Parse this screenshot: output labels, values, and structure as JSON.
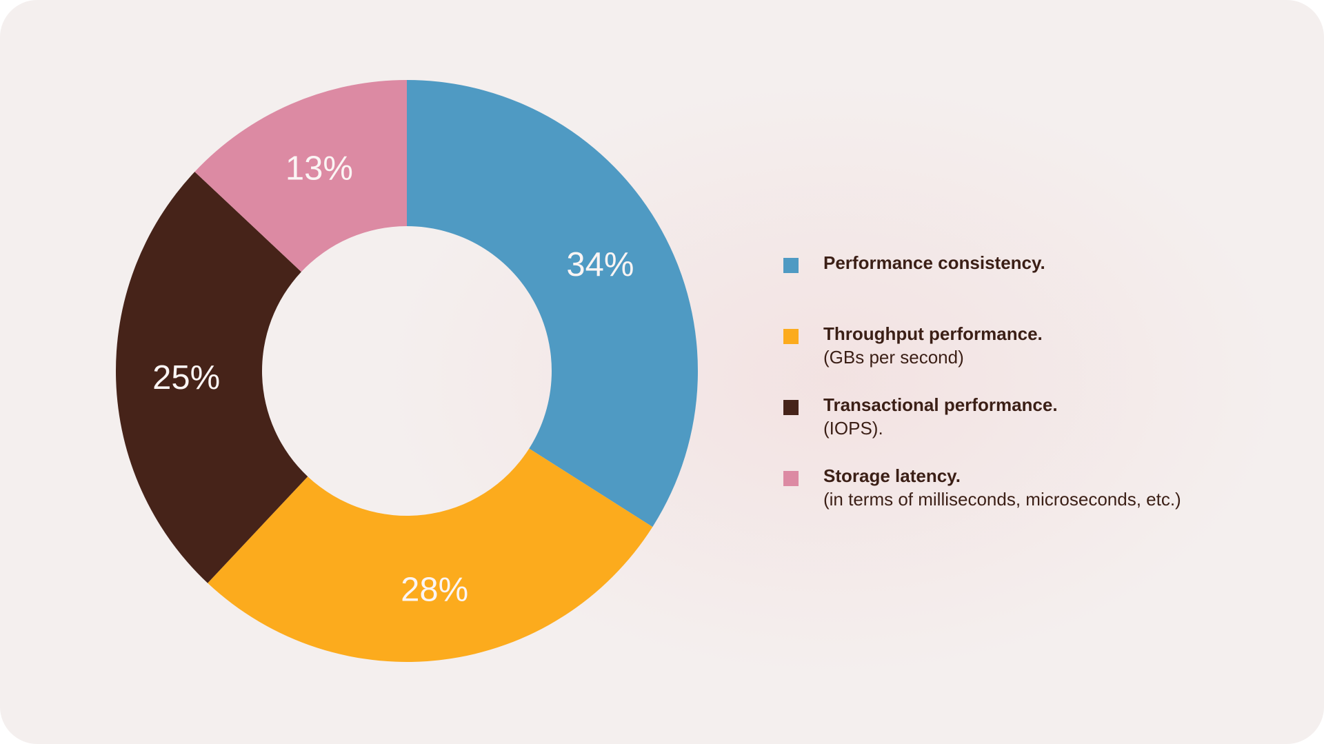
{
  "chart_data": {
    "type": "pie",
    "variant": "donut",
    "categories": [
      "Performance consistency.",
      "Throughput performance.",
      "Transactional performance.",
      "Storage latency."
    ],
    "values": [
      34,
      28,
      25,
      13
    ],
    "value_labels": [
      "34%",
      "28%",
      "25%",
      "13%"
    ],
    "colors": [
      "#4f9ac3",
      "#fcab1d",
      "#462319",
      "#dc8aa3"
    ],
    "legend": {
      "placement": "right",
      "items": [
        {
          "title": "Performance consistency.",
          "subtitle": "",
          "color": "#4f9ac3"
        },
        {
          "title": "Throughput performance.",
          "subtitle": "(GBs per second)",
          "color": "#fcab1d"
        },
        {
          "title": "Transactional performance.",
          "subtitle": "(IOPS).",
          "color": "#462319"
        },
        {
          "title": "Storage latency.",
          "subtitle": "(in terms of milliseconds, microseconds, etc.)",
          "color": "#dc8aa3"
        }
      ]
    }
  }
}
